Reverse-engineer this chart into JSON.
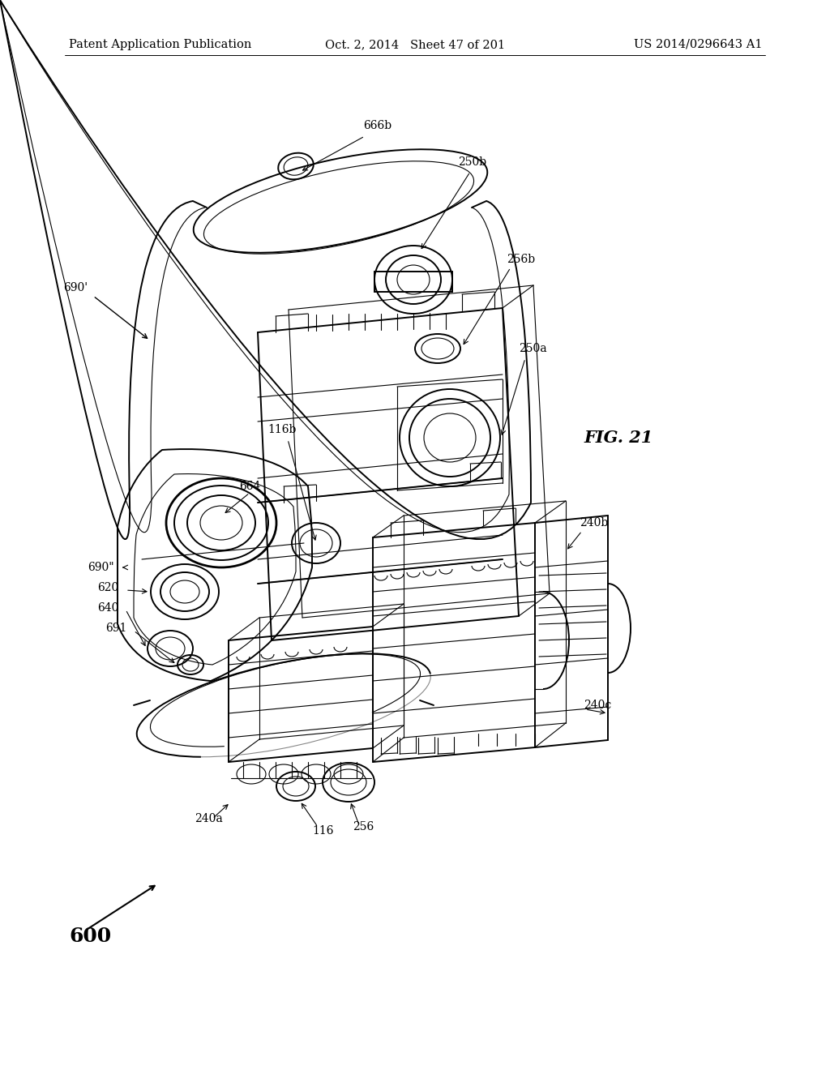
{
  "background_color": "#ffffff",
  "header_left": "Patent Application Publication",
  "header_center": "Oct. 2, 2014   Sheet 47 of 201",
  "header_right": "US 2014/0296643 A1",
  "figure_label": "FIG. 21",
  "main_label": "600",
  "header_fontsize": 10.5,
  "annotation_fontsize": 10,
  "fig_label_fontsize": 15,
  "main_label_fontsize": 18,
  "line_color": "#000000",
  "lw_main": 1.4,
  "lw_thin": 0.8,
  "lw_thick": 2.0
}
